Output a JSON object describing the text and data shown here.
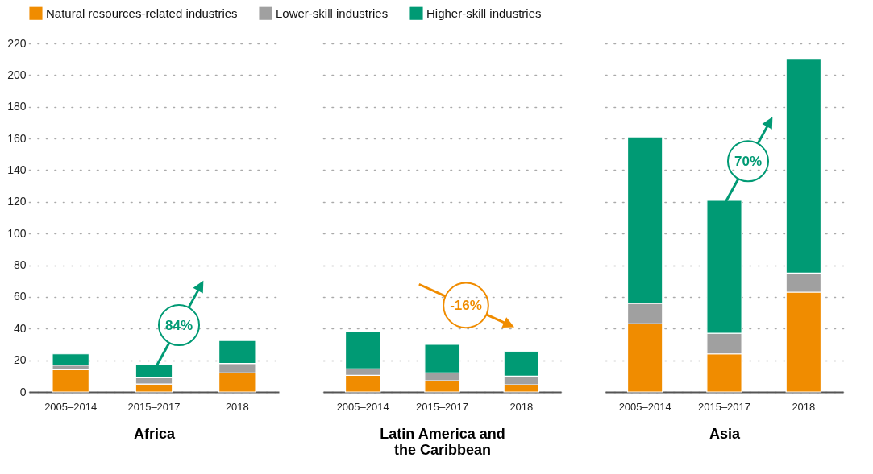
{
  "chart_data": [
    {
      "type": "bar",
      "xlabel": "Africa",
      "categories": [
        "2005–2014",
        "2015–2017",
        "2018"
      ],
      "stacked": true,
      "ylim": [
        0,
        220
      ],
      "yticks": [
        0,
        20,
        40,
        60,
        80,
        100,
        120,
        140,
        160,
        180,
        200,
        220
      ],
      "grid": "y",
      "legend": "top",
      "series": [
        {
          "name": "Natural resources-related industries",
          "color": "#f08c00",
          "values": [
            14,
            5,
            12
          ]
        },
        {
          "name": "Lower-skill industries",
          "color": "#a0a0a0",
          "values": [
            3,
            4,
            6
          ]
        },
        {
          "name": "Higher-skill industries",
          "color": "#009a74",
          "values": [
            7,
            8.5,
            14.5
          ]
        }
      ],
      "annotations": [
        "84%"
      ]
    },
    {
      "type": "bar",
      "xlabel": "Latin America and the Caribbean",
      "categories": [
        "2005–2014",
        "2015–2017",
        "2018"
      ],
      "stacked": true,
      "ylim": [
        0,
        220
      ],
      "yticks": [
        0,
        20,
        40,
        60,
        80,
        100,
        120,
        140,
        160,
        180,
        200,
        220
      ],
      "grid": "y",
      "legend": "top",
      "tick_labels": "x",
      "series": [
        {
          "name": "Natural resources-related industries",
          "color": "#f08c00",
          "values": [
            10.5,
            7,
            4.5
          ]
        },
        {
          "name": "Lower-skill industries",
          "color": "#a0a0a0",
          "values": [
            4,
            5,
            5.5
          ]
        },
        {
          "name": "Higher-skill industries",
          "color": "#009a74",
          "values": [
            23.5,
            18,
            15.5
          ]
        }
      ],
      "annotations": [
        "-16%"
      ]
    },
    {
      "type": "bar",
      "xlabel": "Asia",
      "categories": [
        "2005–2014",
        "2015–2017",
        "2018"
      ],
      "stacked": true,
      "ylim": [
        0,
        220
      ],
      "yticks": [
        0,
        20,
        40,
        60,
        80,
        100,
        120,
        140,
        160,
        180,
        200,
        220
      ],
      "grid": "y",
      "legend": "top",
      "tick_labels": "x",
      "series": [
        {
          "name": "Natural resources-related industries",
          "color": "#f08c00",
          "values": [
            43,
            24,
            63
          ]
        },
        {
          "name": "Lower-skill industries",
          "color": "#a0a0a0",
          "values": [
            13,
            13,
            12
          ]
        },
        {
          "name": "Higher-skill industries",
          "color": "#009a74",
          "values": [
            105,
            84,
            135.5
          ]
        }
      ],
      "annotations": [
        "70%"
      ]
    }
  ]
}
